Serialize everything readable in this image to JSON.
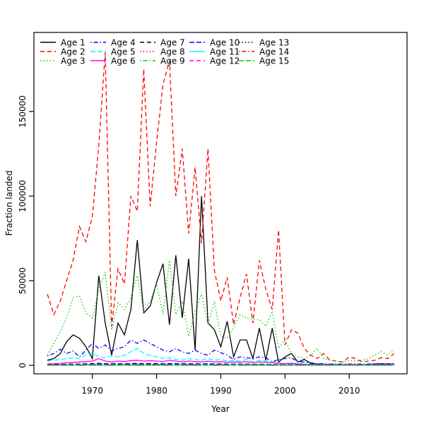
{
  "chart_data": {
    "type": "line",
    "title": "",
    "xlabel": "Year",
    "ylabel": "Fraction landed",
    "x_start": 1963,
    "x": [
      1963,
      1964,
      1965,
      1966,
      1967,
      1968,
      1969,
      1970,
      1971,
      1972,
      1973,
      1974,
      1975,
      1976,
      1977,
      1978,
      1979,
      1980,
      1981,
      1982,
      1983,
      1984,
      1985,
      1986,
      1987,
      1988,
      1989,
      1990,
      1991,
      1992,
      1993,
      1994,
      1995,
      1996,
      1997,
      1998,
      1999,
      2000,
      2001,
      2002,
      2003,
      2004,
      2005,
      2006,
      2007,
      2008,
      2009,
      2010,
      2011,
      2012,
      2013,
      2014,
      2015,
      2016,
      2017
    ],
    "x_ticks": [
      1970,
      1980,
      1990,
      2000,
      2010
    ],
    "y_ticks": [
      0,
      50000,
      100000,
      150000
    ],
    "y_tick_labels": [
      "0",
      "50000",
      "100000",
      "150000"
    ],
    "xlim": [
      1960.9,
      2019.0
    ],
    "ylim": [
      -5000,
      196700
    ],
    "grid": false,
    "legend_position": "top-left",
    "legend_columns": 5,
    "series": [
      {
        "name": "Age 1",
        "color": "#000000",
        "linetype": "solid",
        "values": [
          3000,
          4000,
          7000,
          14000,
          18000,
          16000,
          11000,
          4000,
          53000,
          25000,
          6000,
          25000,
          18000,
          33000,
          74000,
          31000,
          35000,
          49000,
          60000,
          24000,
          65000,
          28000,
          63000,
          9000,
          100000,
          25000,
          21000,
          11000,
          26000,
          5000,
          15000,
          15000,
          4000,
          22000,
          3000,
          22000,
          2000,
          5000,
          7000,
          2000,
          3500,
          1200,
          800,
          600,
          500,
          500,
          400,
          400,
          400,
          400,
          500,
          800,
          900,
          700,
          800
        ]
      },
      {
        "name": "Age 2",
        "color": "#ff0000",
        "linetype": "dashed",
        "values": [
          42000,
          30000,
          38000,
          50000,
          62000,
          82000,
          73000,
          88000,
          130000,
          185000,
          23000,
          57000,
          48000,
          100000,
          91000,
          175000,
          94000,
          132000,
          166000,
          180000,
          100000,
          128000,
          78000,
          117000,
          72000,
          128000,
          56000,
          38000,
          52000,
          24000,
          40000,
          54000,
          25000,
          62000,
          45000,
          33000,
          80000,
          12000,
          21000,
          19000,
          10000,
          6000,
          4000,
          7000,
          3000,
          2500,
          2000,
          5000,
          4000,
          2000,
          2500,
          3000,
          4500,
          4000,
          7000
        ]
      },
      {
        "name": "Age 3",
        "color": "#00cd00",
        "linetype": "dotted",
        "values": [
          6000,
          13000,
          20000,
          28000,
          40000,
          41000,
          31000,
          28000,
          45000,
          55000,
          21000,
          37000,
          33000,
          40000,
          53000,
          32000,
          38000,
          48000,
          30000,
          62000,
          30000,
          38000,
          17000,
          32000,
          42000,
          24000,
          38000,
          17000,
          16000,
          22000,
          30000,
          28000,
          27000,
          27000,
          23000,
          32000,
          10000,
          15000,
          7000,
          5000,
          4000,
          6000,
          10000,
          4000,
          3000,
          2500,
          2000,
          3000,
          2500,
          3000,
          4000,
          6000,
          8000,
          6000,
          9000
        ]
      },
      {
        "name": "Age 4",
        "color": "#0000ff",
        "linetype": "dotdash",
        "values": [
          5500,
          7000,
          9500,
          7000,
          8500,
          5000,
          9000,
          13000,
          10000,
          12000,
          8500,
          10000,
          11000,
          15000,
          13000,
          15000,
          13000,
          11000,
          9000,
          8000,
          10000,
          8000,
          7000,
          9000,
          7000,
          6000,
          9000,
          7500,
          6000,
          3500,
          5000,
          4500,
          4000,
          5000,
          4500,
          2000,
          3500,
          4000,
          4500,
          2000,
          2000,
          1500,
          1000,
          1000,
          800,
          800,
          800,
          800,
          800,
          800,
          800,
          1000,
          1000,
          900,
          1000
        ]
      },
      {
        "name": "Age 5",
        "color": "#00ffff",
        "linetype": "longdash",
        "values": [
          2500,
          3000,
          3500,
          4000,
          4500,
          4000,
          6500,
          7500,
          5000,
          4500,
          5500,
          5000,
          6000,
          8000,
          10000,
          7000,
          6000,
          5000,
          4000,
          4500,
          3500,
          3000,
          4000,
          3500,
          3000,
          4000,
          3000,
          3500,
          2500,
          3000,
          2500,
          3500,
          2000,
          3000,
          2500,
          2000,
          1500,
          1000,
          1500,
          1000,
          800,
          600,
          500,
          500,
          400,
          400,
          400,
          400,
          400,
          400,
          400,
          500,
          500,
          500,
          600
        ]
      },
      {
        "name": "Age 6",
        "color": "#ff00ff",
        "linetype": "solid",
        "values": [
          800,
          1000,
          1200,
          1500,
          1800,
          2000,
          2200,
          2500,
          4000,
          2500,
          2000,
          2500,
          2200,
          2800,
          3000,
          2500,
          2800,
          2500,
          2200,
          3000,
          2500,
          2000,
          2500,
          2200,
          2000,
          2500,
          2000,
          2200,
          1800,
          2000,
          1800,
          2200,
          1500,
          2000,
          1800,
          1500,
          1200,
          1000,
          1200,
          800,
          600,
          500,
          400,
          400,
          300,
          300,
          300,
          300,
          300,
          300,
          300,
          400,
          400,
          400,
          500
        ]
      },
      {
        "name": "Age 7",
        "color": "#000000",
        "linetype": "dashed",
        "values": [
          400,
          500,
          600,
          700,
          800,
          800,
          900,
          1000,
          1200,
          1000,
          900,
          1000,
          900,
          1100,
          1200,
          1000,
          1100,
          1000,
          900,
          1100,
          1000,
          900,
          1000,
          900,
          800,
          1000,
          800,
          900,
          700,
          800,
          700,
          800,
          600,
          700,
          600,
          500,
          400,
          350,
          400,
          300,
          250,
          200,
          200,
          150,
          150,
          150,
          150,
          150,
          150,
          150,
          150,
          200,
          200,
          200,
          250
        ]
      },
      {
        "name": "Age 8",
        "color": "#ff0000",
        "linetype": "dotted",
        "values": [
          200,
          250,
          300,
          350,
          400,
          450,
          500,
          550,
          700,
          600,
          500,
          600,
          550,
          650,
          700,
          600,
          650,
          600,
          550,
          650,
          600,
          550,
          600,
          550,
          500,
          600,
          500,
          550,
          450,
          500,
          450,
          500,
          400,
          450,
          400,
          350,
          300,
          250,
          300,
          200,
          180,
          150,
          150,
          120,
          120,
          120,
          120,
          120,
          120,
          120,
          120,
          150,
          150,
          150,
          180
        ]
      },
      {
        "name": "Age 9",
        "color": "#00cd00",
        "linetype": "dotdash",
        "values": [
          150,
          180,
          220,
          260,
          300,
          330,
          360,
          400,
          500,
          430,
          380,
          430,
          400,
          470,
          500,
          430,
          470,
          430,
          400,
          470,
          430,
          400,
          430,
          400,
          360,
          430,
          360,
          400,
          330,
          360,
          330,
          360,
          300,
          330,
          300,
          260,
          220,
          200,
          220,
          180,
          150,
          130,
          130,
          100,
          100,
          100,
          100,
          100,
          100,
          100,
          100,
          120,
          120,
          120,
          140
        ]
      },
      {
        "name": "Age 10",
        "color": "#0000ff",
        "linetype": "longdash",
        "values": [
          300,
          350,
          420,
          480,
          550,
          600,
          650,
          720,
          900,
          780,
          700,
          780,
          720,
          850,
          900,
          780,
          850,
          780,
          720,
          850,
          780,
          720,
          780,
          720,
          650,
          780,
          650,
          720,
          600,
          650,
          600,
          650,
          550,
          600,
          550,
          480,
          420,
          380,
          420,
          350,
          300,
          250,
          250,
          200,
          200,
          200,
          200,
          200,
          200,
          200,
          200,
          230,
          230,
          230,
          260
        ]
      },
      {
        "name": "Age 11",
        "color": "#00ffff",
        "linetype": "solid",
        "values": [
          150,
          180,
          210,
          240,
          280,
          300,
          330,
          360,
          450,
          390,
          350,
          390,
          360,
          430,
          450,
          390,
          430,
          390,
          360,
          430,
          390,
          360,
          390,
          360,
          330,
          390,
          330,
          360,
          300,
          330,
          300,
          330,
          280,
          300,
          280,
          240,
          210,
          190,
          210,
          180,
          150,
          130,
          130,
          100,
          100,
          100,
          100,
          100,
          100,
          100,
          100,
          120,
          120,
          120,
          130
        ]
      },
      {
        "name": "Age 12",
        "color": "#ff00ff",
        "linetype": "dashed",
        "values": [
          100,
          120,
          140,
          160,
          190,
          200,
          220,
          240,
          300,
          260,
          230,
          260,
          240,
          290,
          300,
          260,
          290,
          260,
          240,
          290,
          260,
          240,
          260,
          240,
          220,
          260,
          220,
          240,
          200,
          220,
          200,
          220,
          190,
          200,
          190,
          160,
          140,
          130,
          140,
          120,
          100,
          90,
          90,
          70,
          70,
          70,
          70,
          70,
          70,
          70,
          70,
          80,
          80,
          80,
          90
        ]
      },
      {
        "name": "Age 13",
        "color": "#000000",
        "linetype": "dotted",
        "values": [
          70,
          85,
          100,
          110,
          130,
          140,
          155,
          170,
          210,
          180,
          160,
          180,
          170,
          200,
          210,
          180,
          200,
          180,
          170,
          200,
          180,
          170,
          180,
          170,
          155,
          180,
          155,
          170,
          140,
          155,
          140,
          155,
          130,
          140,
          130,
          110,
          100,
          90,
          100,
          85,
          70,
          65,
          65,
          50,
          50,
          50,
          50,
          50,
          50,
          50,
          50,
          55,
          55,
          55,
          65
        ]
      },
      {
        "name": "Age 14",
        "color": "#ff0000",
        "linetype": "dotdash",
        "values": [
          50,
          60,
          70,
          80,
          90,
          100,
          110,
          120,
          150,
          130,
          115,
          130,
          120,
          140,
          150,
          130,
          140,
          130,
          120,
          140,
          130,
          120,
          130,
          120,
          110,
          130,
          110,
          120,
          100,
          110,
          100,
          110,
          90,
          100,
          90,
          80,
          70,
          65,
          70,
          60,
          50,
          45,
          45,
          35,
          35,
          35,
          35,
          35,
          35,
          35,
          35,
          40,
          40,
          40,
          45
        ]
      },
      {
        "name": "Age 15",
        "color": "#00cd00",
        "linetype": "longdash",
        "values": [
          35,
          42,
          50,
          55,
          65,
          70,
          78,
          85,
          105,
          90,
          80,
          90,
          85,
          100,
          105,
          90,
          100,
          90,
          85,
          100,
          90,
          85,
          90,
          85,
          78,
          90,
          78,
          85,
          70,
          78,
          70,
          78,
          65,
          70,
          65,
          55,
          50,
          45,
          50,
          42,
          35,
          32,
          32,
          25,
          25,
          25,
          25,
          25,
          25,
          25,
          25,
          28,
          28,
          28,
          32
        ]
      }
    ]
  }
}
